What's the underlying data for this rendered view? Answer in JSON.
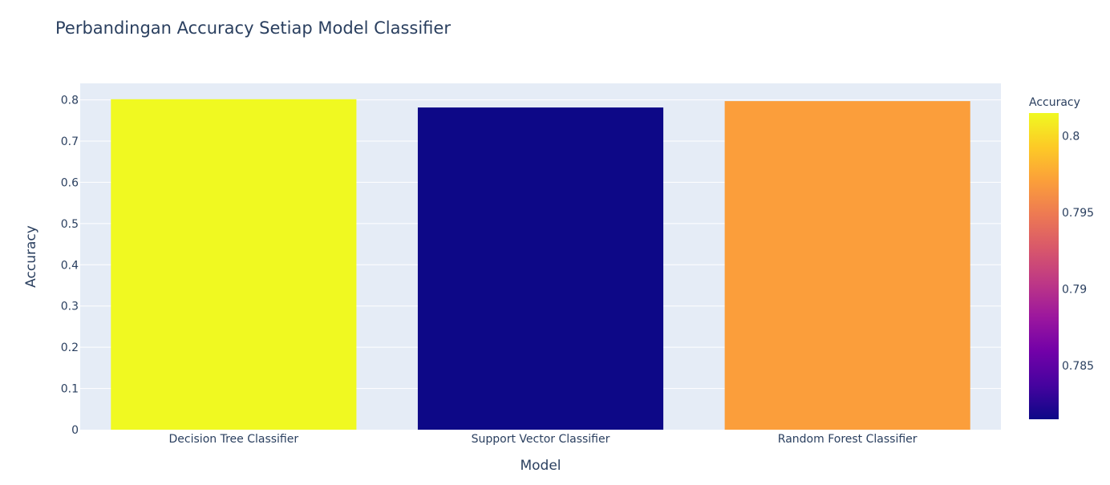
{
  "chart_data": {
    "type": "bar",
    "title": "Perbandingan Accuracy Setiap Model Classifier",
    "xlabel": "Model",
    "ylabel": "Accuracy",
    "categories": [
      "Decision Tree Classifier",
      "Support Vector Classifier",
      "Random Forest Classifier"
    ],
    "values": [
      0.8015,
      0.7815,
      0.797
    ],
    "ylim": [
      0,
      0.84
    ],
    "y_ticks": [
      0,
      0.1,
      0.2,
      0.3,
      0.4,
      0.5,
      0.6,
      0.7,
      0.8
    ],
    "y_tick_labels": [
      "0",
      "0.1",
      "0.2",
      "0.3",
      "0.4",
      "0.5",
      "0.6",
      "0.7",
      "0.8"
    ],
    "grid": true,
    "colorbar": {
      "title": "Accuracy",
      "range": [
        0.7815,
        0.8015
      ],
      "ticks": [
        0.785,
        0.79,
        0.795,
        0.8
      ],
      "tick_labels": [
        "0.785",
        "0.79",
        "0.795",
        "0.8"
      ],
      "colorscale": "plasma"
    },
    "colors": {
      "plot_background": "#e5ecf6",
      "text": "#2a3f5f"
    }
  }
}
